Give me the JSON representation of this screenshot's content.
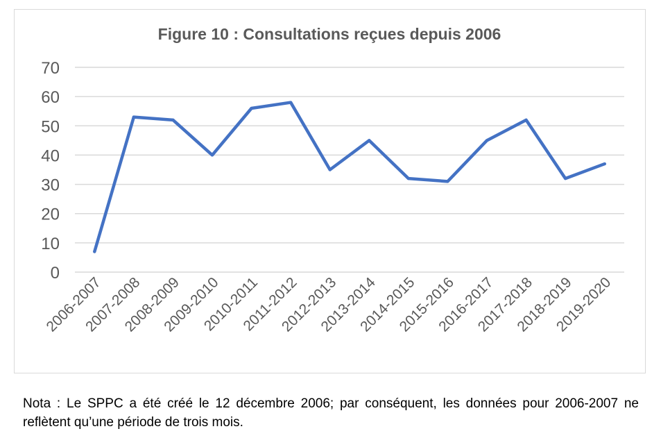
{
  "chart_data": {
    "type": "line",
    "title": "Figure 10 : Consultations reçues depuis 2006",
    "categories": [
      "2006-2007",
      "2007-2008",
      "2008-2009",
      "2009-2010",
      "2010-2011",
      "2011-2012",
      "2012-2013",
      "2013-2014",
      "2014-2015",
      "2015-2016",
      "2016-2017",
      "2017-2018",
      "2018-2019",
      "2019-2020"
    ],
    "values": [
      7,
      53,
      52,
      40,
      56,
      58,
      35,
      45,
      32,
      31,
      45,
      52,
      32,
      37
    ],
    "ylim": [
      0,
      70
    ],
    "yticks": [
      0,
      10,
      20,
      30,
      40,
      50,
      60,
      70
    ],
    "xlabel": "",
    "ylabel": "",
    "grid": true,
    "legend": "none",
    "color": "#4472C4"
  },
  "note": "Nota : Le SPPC a été créé le 12 décembre 2006; par conséquent, les données pour 2006-2007 ne reflètent qu’une période de trois mois."
}
